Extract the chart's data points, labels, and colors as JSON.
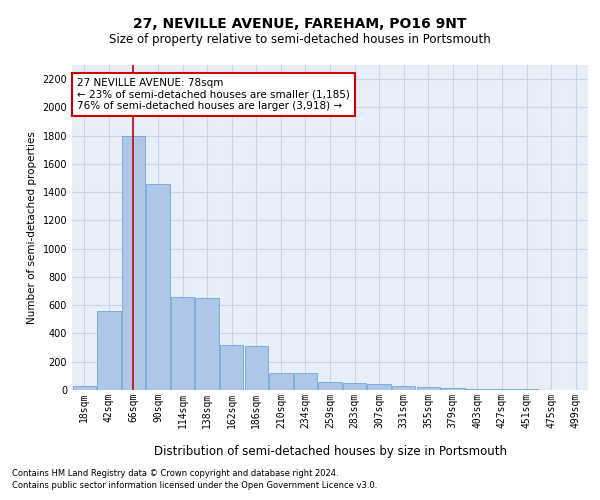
{
  "title": "27, NEVILLE AVENUE, FAREHAM, PO16 9NT",
  "subtitle": "Size of property relative to semi-detached houses in Portsmouth",
  "xlabel": "Distribution of semi-detached houses by size in Portsmouth",
  "ylabel": "Number of semi-detached properties",
  "footnote1": "Contains HM Land Registry data © Crown copyright and database right 2024.",
  "footnote2": "Contains public sector information licensed under the Open Government Licence v3.0.",
  "annotation_title": "27 NEVILLE AVENUE: 78sqm",
  "annotation_line1": "← 23% of semi-detached houses are smaller (1,185)",
  "annotation_line2": "76% of semi-detached houses are larger (3,918) →",
  "categories": [
    "18sqm",
    "42sqm",
    "66sqm",
    "90sqm",
    "114sqm",
    "138sqm",
    "162sqm",
    "186sqm",
    "210sqm",
    "234sqm",
    "259sqm",
    "283sqm",
    "307sqm",
    "331sqm",
    "355sqm",
    "379sqm",
    "403sqm",
    "427sqm",
    "451sqm",
    "475sqm",
    "499sqm"
  ],
  "values": [
    30,
    560,
    1800,
    1460,
    660,
    650,
    320,
    310,
    120,
    120,
    60,
    50,
    45,
    30,
    20,
    15,
    10,
    8,
    5,
    3,
    2
  ],
  "bar_color": "#aec6e8",
  "bar_edge_color": "#5a9fd4",
  "vline_color": "#cc0000",
  "vline_x_idx": 2.0,
  "ylim": [
    0,
    2300
  ],
  "yticks": [
    0,
    200,
    400,
    600,
    800,
    1000,
    1200,
    1400,
    1600,
    1800,
    2000,
    2200
  ],
  "grid_color": "#c8d4e8",
  "background_color": "#e8eef8",
  "title_fontsize": 10,
  "subtitle_fontsize": 8.5,
  "xlabel_fontsize": 8.5,
  "ylabel_fontsize": 7.5,
  "annotation_box_edgecolor": "#cc0000",
  "annotation_fontsize": 7.5,
  "tick_fontsize": 7,
  "footnote_fontsize": 6
}
